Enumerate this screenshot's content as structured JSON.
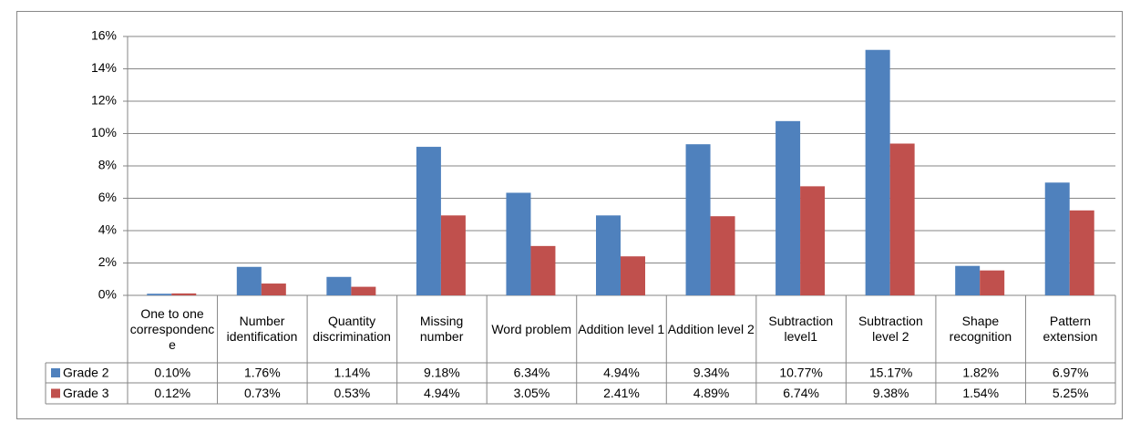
{
  "chart_data": {
    "type": "bar",
    "categories": [
      "One to one correspondence",
      "Number identification",
      "Quantity discrimination",
      "Missing number",
      "Word problem",
      "Addition level 1",
      "Addition level 2",
      "Subtraction level1",
      "Subtraction level 2",
      "Shape recognition",
      "Pattern extension"
    ],
    "series": [
      {
        "name": "Grade 2",
        "color": "#4f81bd",
        "values": [
          0.1,
          1.76,
          1.14,
          9.18,
          6.34,
          4.94,
          9.34,
          10.77,
          15.17,
          1.82,
          6.97
        ],
        "value_labels": [
          "0.10%",
          "1.76%",
          "1.14%",
          "9.18%",
          "6.34%",
          "4.94%",
          "9.34%",
          "10.77%",
          "15.17%",
          "1.82%",
          "6.97%"
        ]
      },
      {
        "name": "Grade 3",
        "color": "#c0504d",
        "values": [
          0.12,
          0.73,
          0.53,
          4.94,
          3.05,
          2.41,
          4.89,
          6.74,
          9.38,
          1.54,
          5.25
        ],
        "value_labels": [
          "0.12%",
          "0.73%",
          "0.53%",
          "4.94%",
          "3.05%",
          "2.41%",
          "4.89%",
          "6.74%",
          "9.38%",
          "1.54%",
          "5.25%"
        ]
      }
    ],
    "ylim": [
      0,
      16
    ],
    "yticks": [
      {
        "value": 0,
        "label": "0%"
      },
      {
        "value": 2,
        "label": "2%"
      },
      {
        "value": 4,
        "label": "4%"
      },
      {
        "value": 6,
        "label": "6%"
      },
      {
        "value": 8,
        "label": "8%"
      },
      {
        "value": 10,
        "label": "10%"
      },
      {
        "value": 12,
        "label": "12%"
      },
      {
        "value": 14,
        "label": "14%"
      },
      {
        "value": 16,
        "label": "16%"
      }
    ],
    "grid": true
  }
}
